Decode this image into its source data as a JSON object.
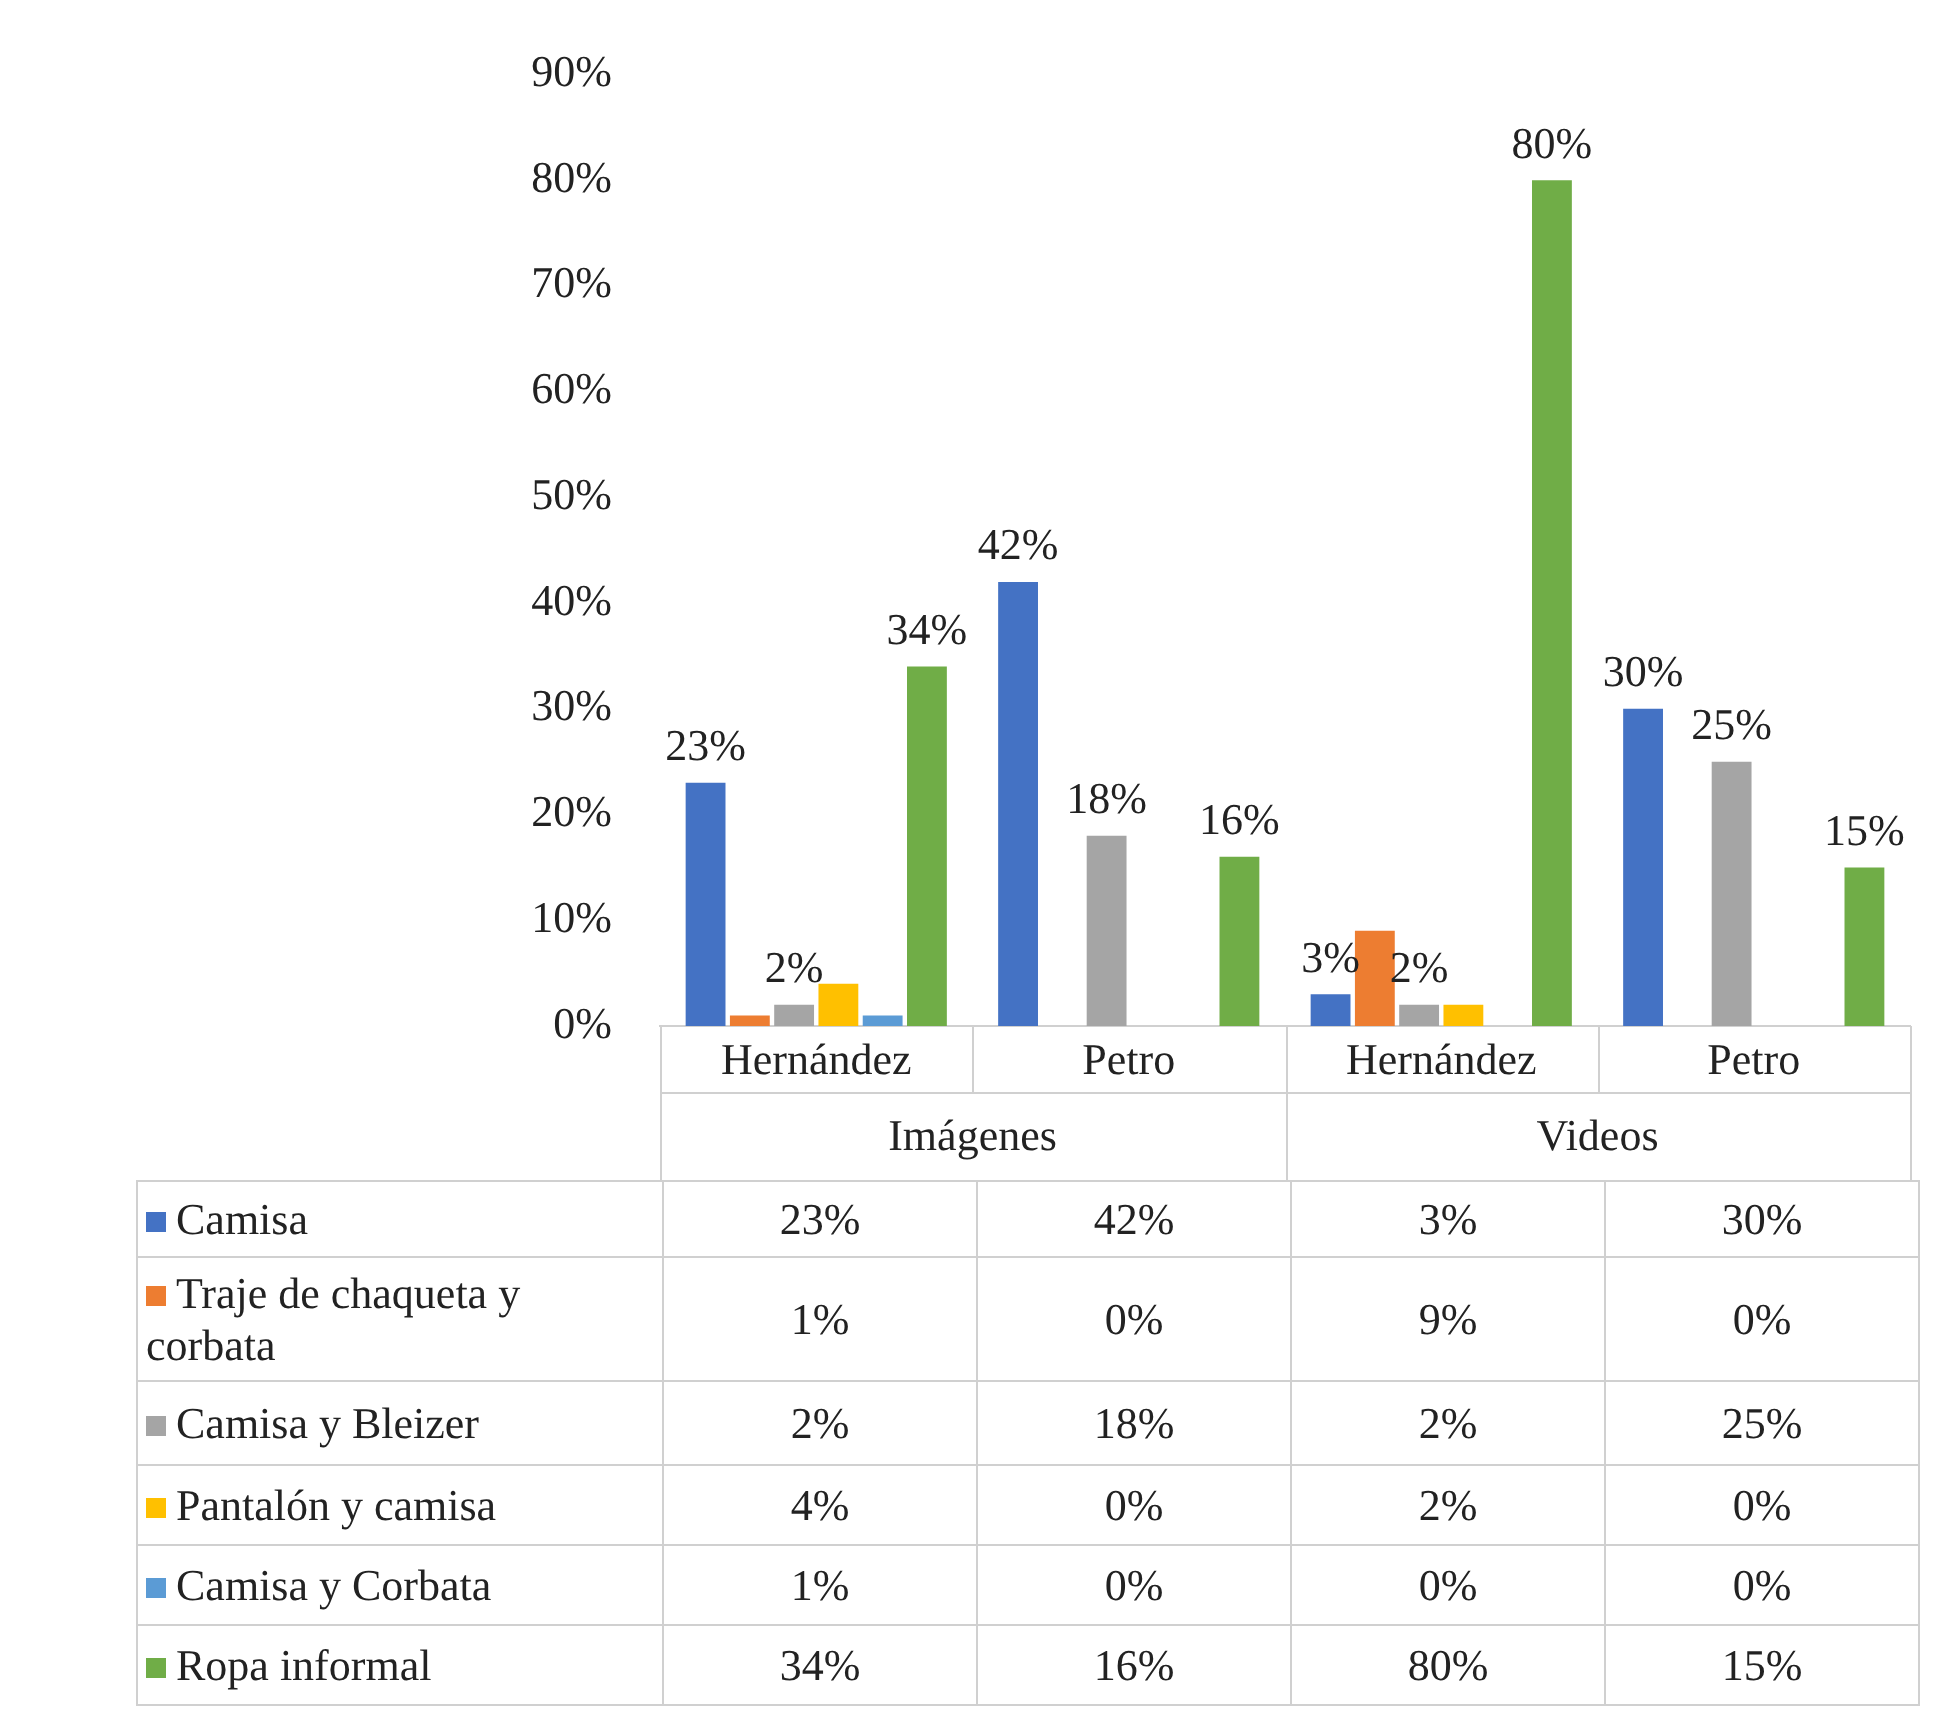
{
  "chart_data": {
    "type": "bar",
    "categories": [
      "Hernández",
      "Petro",
      "Hernández",
      "Petro"
    ],
    "annotations": [
      "Imágenes",
      "Videos"
    ],
    "series": [
      {
        "name": "Camisa",
        "color": "#4472c4",
        "values": [
          23,
          42,
          3,
          30
        ],
        "value_labels": [
          "23%",
          "42%",
          "3%",
          "30%"
        ]
      },
      {
        "name": "Traje de chaqueta y corbata",
        "color": "#ed7d31",
        "values": [
          1,
          0,
          9,
          0
        ],
        "value_labels": [
          "1%",
          "0%",
          "9%",
          "0%"
        ],
        "data_labels": false
      },
      {
        "name": "Camisa y Bleizer",
        "color": "#a5a5a5",
        "values": [
          2,
          18,
          2,
          25
        ],
        "value_labels": [
          "2%",
          "18%",
          "2%",
          "25%"
        ]
      },
      {
        "name": "Pantalón y camisa",
        "color": "#ffc000",
        "values": [
          4,
          0,
          2,
          0
        ],
        "value_labels": [
          "4%",
          "0%",
          "2%",
          "0%"
        ],
        "data_labels": false
      },
      {
        "name": "Camisa y Corbata",
        "color": "#5b9bd5",
        "values": [
          1,
          0,
          0,
          0
        ],
        "value_labels": [
          "1%",
          "0%",
          "0%",
          "0%"
        ],
        "data_labels": false
      },
      {
        "name": "Ropa informal",
        "color": "#70ad47",
        "values": [
          34,
          16,
          80,
          15
        ],
        "value_labels": [
          "34%",
          "16%",
          "80%",
          "15%"
        ]
      }
    ],
    "ylim": [
      0,
      90
    ],
    "yticks": [
      {
        "value": 0,
        "label": "0%"
      },
      {
        "value": 10,
        "label": "10%"
      },
      {
        "value": 20,
        "label": "20%"
      },
      {
        "value": 30,
        "label": "30%"
      },
      {
        "value": 40,
        "label": "40%"
      },
      {
        "value": 50,
        "label": "50%"
      },
      {
        "value": 60,
        "label": "60%"
      },
      {
        "value": 70,
        "label": "70%"
      },
      {
        "value": 80,
        "label": "80%"
      },
      {
        "value": 90,
        "label": "90%"
      }
    ],
    "grid": false,
    "legend": "bottom",
    "data_labels": true
  }
}
